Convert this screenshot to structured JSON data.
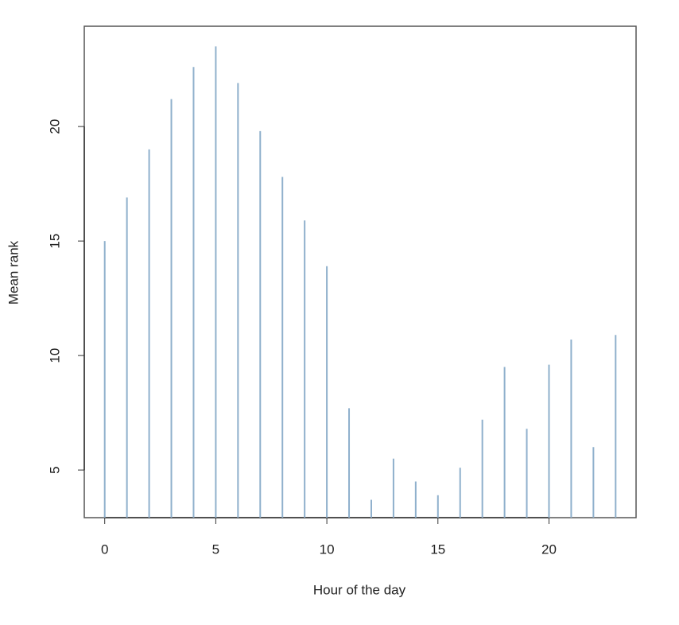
{
  "chart_data": {
    "type": "bar",
    "x_label": "Hour of the day",
    "y_label": "Mean rank",
    "x": [
      0,
      1,
      2,
      3,
      4,
      5,
      6,
      7,
      8,
      9,
      10,
      11,
      12,
      13,
      14,
      15,
      16,
      17,
      18,
      19,
      20,
      21,
      22,
      23
    ],
    "values": [
      15.0,
      16.9,
      19.0,
      21.2,
      22.6,
      23.5,
      21.9,
      19.8,
      17.8,
      15.9,
      13.9,
      7.7,
      3.7,
      5.5,
      4.5,
      3.9,
      5.1,
      7.2,
      9.5,
      6.8,
      9.6,
      10.7,
      6.0,
      10.9
    ],
    "color": "#8fb0cc",
    "xlim": [
      -0.92,
      23.92
    ],
    "ylim": [
      2.92,
      24.38
    ],
    "xticks": [
      0,
      5,
      10,
      15,
      20
    ],
    "yticks": [
      5,
      10,
      15,
      20
    ]
  }
}
